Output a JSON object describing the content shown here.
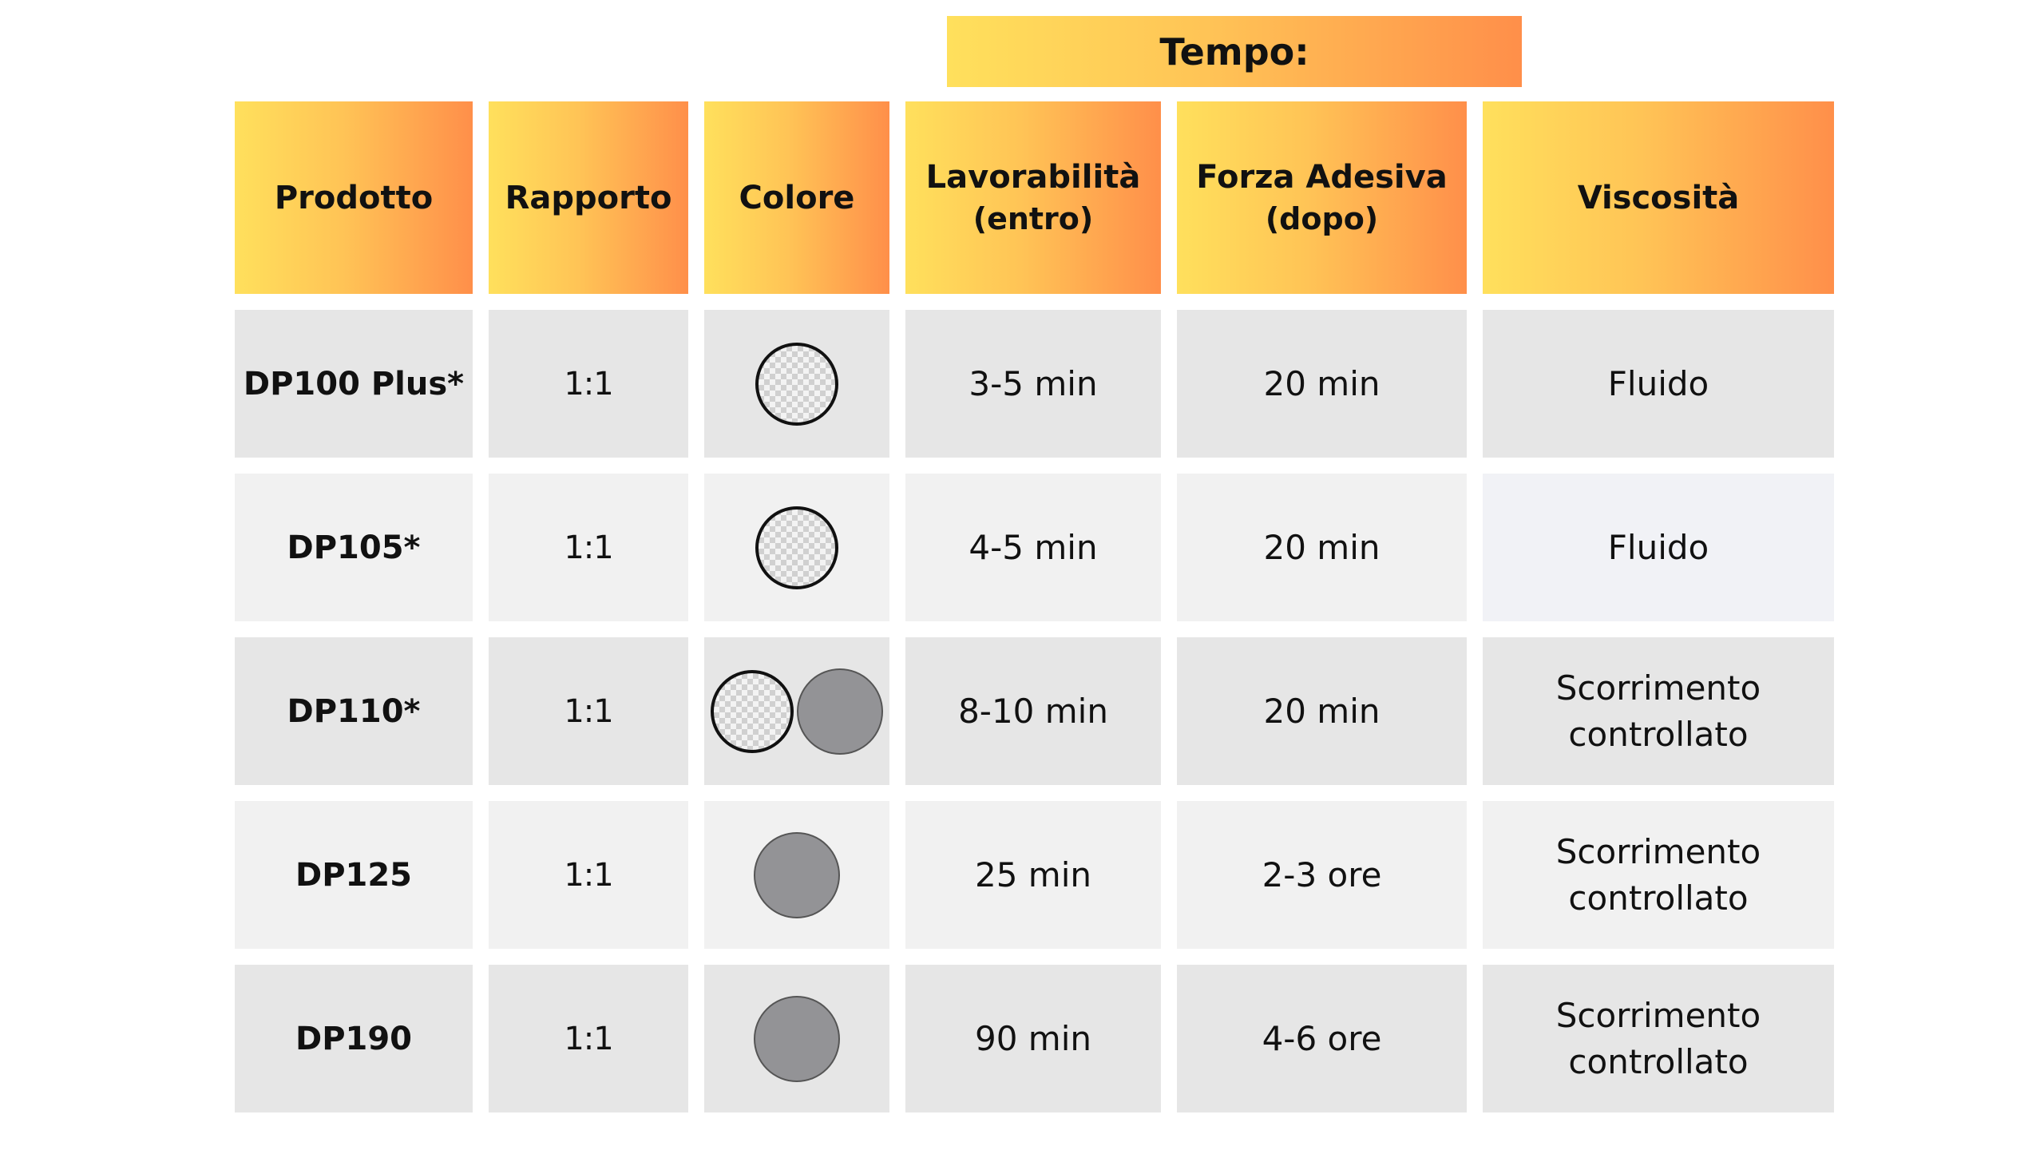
{
  "group_header": "Tempo:",
  "headers": [
    {
      "title": "Prodotto",
      "sub": ""
    },
    {
      "title": "Rapporto",
      "sub": ""
    },
    {
      "title": "Colore",
      "sub": ""
    },
    {
      "title": "Lavorabilità",
      "sub": "(entro)"
    },
    {
      "title": "Forza Adesiva",
      "sub": "(dopo)"
    },
    {
      "title": "Viscosità",
      "sub": ""
    }
  ],
  "rows": [
    {
      "product": "DP100 Plus*",
      "ratio": "1:1",
      "colors": [
        "transparent"
      ],
      "workability": "3-5 min",
      "strength": "20 min",
      "viscosity": "Fluido"
    },
    {
      "product": "DP105*",
      "ratio": "1:1",
      "colors": [
        "transparent"
      ],
      "workability": "4-5 min",
      "strength": "20 min",
      "viscosity": "Fluido"
    },
    {
      "product": "DP110*",
      "ratio": "1:1",
      "colors": [
        "transparent",
        "grey"
      ],
      "workability": "8-10 min",
      "strength": "20 min",
      "viscosity": "Scorrimento controllato"
    },
    {
      "product": "DP125",
      "ratio": "1:1",
      "colors": [
        "grey"
      ],
      "workability": "25 min",
      "strength": "2-3 ore",
      "viscosity": "Scorrimento controllato"
    },
    {
      "product": "DP190",
      "ratio": "1:1",
      "colors": [
        "grey"
      ],
      "workability": "90 min",
      "strength": "4-6 ore",
      "viscosity": "Scorrimento controllato"
    }
  ],
  "colors": {
    "gradient_start": "#ffe05c",
    "gradient_end": "#ff8f4a",
    "grey_swatch": "#939396",
    "row_dark": "#e6e6e6",
    "row_light": "#f1f1f1"
  }
}
